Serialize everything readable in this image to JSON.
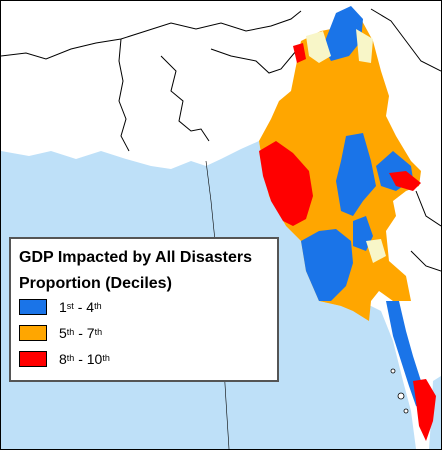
{
  "legend": {
    "title": "GDP Impacted by All Disasters",
    "subtitle": "Proportion (Deciles)",
    "items": [
      {
        "from": "1",
        "from_suffix": "st",
        "separator": " - ",
        "to": "4",
        "to_suffix": "th",
        "color": "#1a74e8"
      },
      {
        "from": "5",
        "from_suffix": "th",
        "separator": " - ",
        "to": "7",
        "to_suffix": "th",
        "color": "#ffa600"
      },
      {
        "from": "8",
        "from_suffix": "th",
        "separator": " - ",
        "to": "10",
        "to_suffix": "th",
        "color": "#ff0000"
      }
    ]
  },
  "colors": {
    "sea": "#bee0f8",
    "land": "#ffffff",
    "border": "#000000",
    "low_data": "#f8f6c8"
  }
}
